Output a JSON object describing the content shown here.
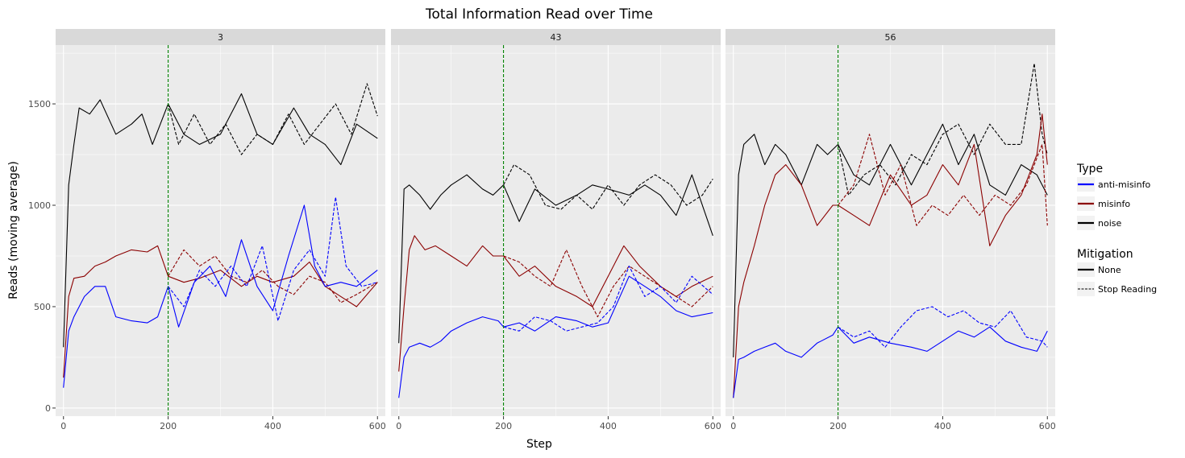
{
  "chart_data": {
    "type": "line",
    "title": "Total Information Read over Time",
    "xlabel": "Step",
    "ylabel": "Reads (moving average)",
    "xlim": [
      -15,
      615
    ],
    "ylim": [
      -40,
      1790
    ],
    "x_ticks": [
      0,
      200,
      400,
      600
    ],
    "x_tick_labels": [
      "0",
      "200",
      "400",
      "600"
    ],
    "y_ticks": [
      0,
      500,
      1000,
      1500
    ],
    "y_tick_labels": [
      "0",
      "500",
      "1000",
      "1500"
    ],
    "vline_x": 200,
    "grid": true,
    "legend": {
      "placement": "right",
      "type_title": "Type",
      "type_entries": [
        {
          "label": "anti-misinfo",
          "color": "#0000ff"
        },
        {
          "label": "misinfo",
          "color": "#8b0000"
        },
        {
          "label": "noise",
          "color": "#000000"
        }
      ],
      "mitigation_title": "Mitigation",
      "mitigation_entries": [
        {
          "label": "None",
          "dash": "solid"
        },
        {
          "label": "Stop Reading",
          "dash": "dashed"
        }
      ]
    },
    "colors": {
      "anti-misinfo": "#0000ff",
      "misinfo": "#8b0000",
      "noise": "#000000",
      "vline": "#008000",
      "panel_bg": "#ebebeb",
      "strip_bg": "#d9d9d9"
    },
    "panels": [
      {
        "label": "3",
        "series": [
          {
            "type": "noise",
            "mitigation": "None",
            "x": [
              0,
              10,
              20,
              30,
              50,
              70,
              100,
              130,
              150,
              170,
              200,
              230,
              260,
              300,
              340,
              370,
              400,
              440,
              470,
              500,
              530,
              560,
              600
            ],
            "y": [
              300,
              1100,
              1300,
              1480,
              1450,
              1520,
              1350,
              1400,
              1450,
              1300,
              1500,
              1350,
              1300,
              1350,
              1550,
              1350,
              1300,
              1480,
              1350,
              1300,
              1200,
              1400,
              1330
            ]
          },
          {
            "type": "noise",
            "mitigation": "Stop Reading",
            "x": [
              200,
              220,
              250,
              280,
              310,
              340,
              370,
              400,
              430,
              460,
              490,
              520,
              550,
              580,
              600
            ],
            "y": [
              1500,
              1300,
              1450,
              1300,
              1400,
              1250,
              1350,
              1300,
              1450,
              1300,
              1400,
              1500,
              1350,
              1600,
              1440
            ]
          },
          {
            "type": "misinfo",
            "mitigation": "None",
            "x": [
              0,
              10,
              20,
              40,
              60,
              80,
              100,
              130,
              160,
              180,
              200,
              230,
              260,
              300,
              340,
              370,
              400,
              440,
              470,
              500,
              530,
              560,
              600
            ],
            "y": [
              150,
              550,
              640,
              650,
              700,
              720,
              750,
              780,
              770,
              800,
              650,
              620,
              640,
              680,
              600,
              650,
              620,
              650,
              720,
              600,
              550,
              500,
              620
            ]
          },
          {
            "type": "misinfo",
            "mitigation": "Stop Reading",
            "x": [
              200,
              230,
              260,
              290,
              320,
              350,
              380,
              410,
              440,
              470,
              500,
              530,
              560,
              600
            ],
            "y": [
              650,
              780,
              700,
              750,
              650,
              620,
              680,
              600,
              560,
              650,
              620,
              520,
              560,
              620
            ]
          },
          {
            "type": "anti-misinfo",
            "mitigation": "None",
            "x": [
              0,
              10,
              20,
              40,
              60,
              80,
              100,
              130,
              160,
              180,
              200,
              220,
              250,
              280,
              310,
              340,
              370,
              400,
              430,
              460,
              480,
              500,
              530,
              560,
              600
            ],
            "y": [
              100,
              380,
              450,
              550,
              600,
              600,
              450,
              430,
              420,
              450,
              600,
              400,
              620,
              700,
              550,
              830,
              600,
              480,
              750,
              1000,
              700,
              600,
              620,
              600,
              680
            ]
          },
          {
            "type": "anti-misinfo",
            "mitigation": "Stop Reading",
            "x": [
              200,
              230,
              260,
              290,
              320,
              350,
              380,
              410,
              440,
              470,
              500,
              520,
              540,
              570,
              600
            ],
            "y": [
              600,
              500,
              680,
              600,
              700,
              600,
              800,
              430,
              680,
              780,
              650,
              1040,
              700,
              600,
              620
            ]
          }
        ]
      },
      {
        "label": "43",
        "series": [
          {
            "type": "noise",
            "mitigation": "None",
            "x": [
              0,
              10,
              20,
              40,
              60,
              80,
              100,
              130,
              160,
              180,
              200,
              230,
              260,
              300,
              340,
              370,
              400,
              440,
              470,
              500,
              530,
              560,
              600
            ],
            "y": [
              320,
              1080,
              1100,
              1050,
              980,
              1050,
              1100,
              1150,
              1080,
              1050,
              1100,
              920,
              1080,
              1000,
              1050,
              1100,
              1080,
              1050,
              1100,
              1050,
              950,
              1150,
              850
            ]
          },
          {
            "type": "noise",
            "mitigation": "Stop Reading",
            "x": [
              200,
              220,
              250,
              280,
              310,
              340,
              370,
              400,
              430,
              460,
              490,
              520,
              550,
              580,
              600
            ],
            "y": [
              1100,
              1200,
              1150,
              1000,
              980,
              1050,
              980,
              1100,
              1000,
              1100,
              1150,
              1100,
              1000,
              1050,
              1130
            ]
          },
          {
            "type": "misinfo",
            "mitigation": "None",
            "x": [
              0,
              10,
              20,
              30,
              50,
              70,
              100,
              130,
              160,
              180,
              200,
              230,
              260,
              300,
              340,
              370,
              400,
              430,
              460,
              500,
              530,
              560,
              600
            ],
            "y": [
              180,
              500,
              780,
              850,
              780,
              800,
              750,
              700,
              800,
              750,
              750,
              650,
              700,
              600,
              550,
              500,
              650,
              800,
              700,
              600,
              550,
              600,
              650
            ]
          },
          {
            "type": "misinfo",
            "mitigation": "Stop Reading",
            "x": [
              200,
              230,
              260,
              290,
              320,
              350,
              380,
              410,
              440,
              470,
              500,
              530,
              560,
              600
            ],
            "y": [
              750,
              720,
              650,
              600,
              780,
              600,
              450,
              600,
              700,
              650,
              600,
              550,
              500,
              600
            ]
          },
          {
            "type": "anti-misinfo",
            "mitigation": "None",
            "x": [
              0,
              10,
              20,
              40,
              60,
              80,
              100,
              130,
              160,
              190,
              200,
              230,
              260,
              300,
              340,
              370,
              400,
              440,
              470,
              500,
              530,
              560,
              600
            ],
            "y": [
              50,
              250,
              300,
              320,
              300,
              330,
              380,
              420,
              450,
              430,
              400,
              420,
              380,
              450,
              430,
              400,
              420,
              650,
              600,
              550,
              480,
              450,
              470
            ]
          },
          {
            "type": "anti-misinfo",
            "mitigation": "Stop Reading",
            "x": [
              200,
              230,
              260,
              290,
              320,
              350,
              380,
              410,
              440,
              470,
              500,
              530,
              560,
              600
            ],
            "y": [
              400,
              380,
              450,
              430,
              380,
              400,
              420,
              500,
              700,
              550,
              600,
              520,
              650,
              560
            ]
          }
        ]
      },
      {
        "label": "56",
        "series": [
          {
            "type": "noise",
            "mitigation": "None",
            "x": [
              0,
              10,
              20,
              40,
              60,
              80,
              100,
              130,
              160,
              180,
              200,
              230,
              260,
              300,
              340,
              370,
              400,
              430,
              460,
              490,
              520,
              550,
              580,
              600
            ],
            "y": [
              250,
              1150,
              1300,
              1350,
              1200,
              1300,
              1250,
              1100,
              1300,
              1250,
              1300,
              1150,
              1100,
              1300,
              1100,
              1250,
              1400,
              1200,
              1350,
              1100,
              1050,
              1200,
              1150,
              1050
            ]
          },
          {
            "type": "noise",
            "mitigation": "Stop Reading",
            "x": [
              200,
              220,
              250,
              280,
              310,
              340,
              370,
              400,
              430,
              460,
              490,
              520,
              550,
              575,
              590,
              600
            ],
            "y": [
              1300,
              1050,
              1150,
              1200,
              1100,
              1250,
              1200,
              1350,
              1400,
              1250,
              1400,
              1300,
              1300,
              1700,
              1350,
              1250
            ]
          },
          {
            "type": "misinfo",
            "mitigation": "None",
            "x": [
              0,
              10,
              20,
              40,
              60,
              80,
              100,
              130,
              160,
              190,
              200,
              230,
              260,
              300,
              340,
              370,
              400,
              430,
              460,
              490,
              520,
              550,
              580,
              590,
              600
            ],
            "y": [
              50,
              500,
              620,
              800,
              1000,
              1150,
              1200,
              1100,
              900,
              1000,
              1000,
              950,
              900,
              1150,
              1000,
              1050,
              1200,
              1100,
              1300,
              800,
              950,
              1050,
              1250,
              1450,
              1200
            ]
          },
          {
            "type": "misinfo",
            "mitigation": "Stop Reading",
            "x": [
              200,
              230,
              260,
              290,
              320,
              350,
              380,
              410,
              440,
              470,
              500,
              530,
              560,
              590,
              600
            ],
            "y": [
              1000,
              1100,
              1350,
              1050,
              1200,
              900,
              1000,
              950,
              1050,
              950,
              1050,
              1000,
              1100,
              1300,
              900
            ]
          },
          {
            "type": "anti-misinfo",
            "mitigation": "None",
            "x": [
              0,
              10,
              20,
              40,
              60,
              80,
              100,
              130,
              160,
              190,
              200,
              230,
              260,
              300,
              340,
              370,
              400,
              430,
              460,
              490,
              520,
              550,
              580,
              600
            ],
            "y": [
              50,
              240,
              250,
              280,
              300,
              320,
              280,
              250,
              320,
              360,
              400,
              320,
              350,
              320,
              300,
              280,
              330,
              380,
              350,
              400,
              330,
              300,
              280,
              380
            ]
          },
          {
            "type": "anti-misinfo",
            "mitigation": "Stop Reading",
            "x": [
              200,
              230,
              260,
              290,
              320,
              350,
              380,
              410,
              440,
              470,
              500,
              530,
              560,
              590,
              600
            ],
            "y": [
              400,
              350,
              380,
              300,
              400,
              480,
              500,
              450,
              480,
              420,
              400,
              480,
              350,
              330,
              300
            ]
          }
        ]
      }
    ]
  }
}
